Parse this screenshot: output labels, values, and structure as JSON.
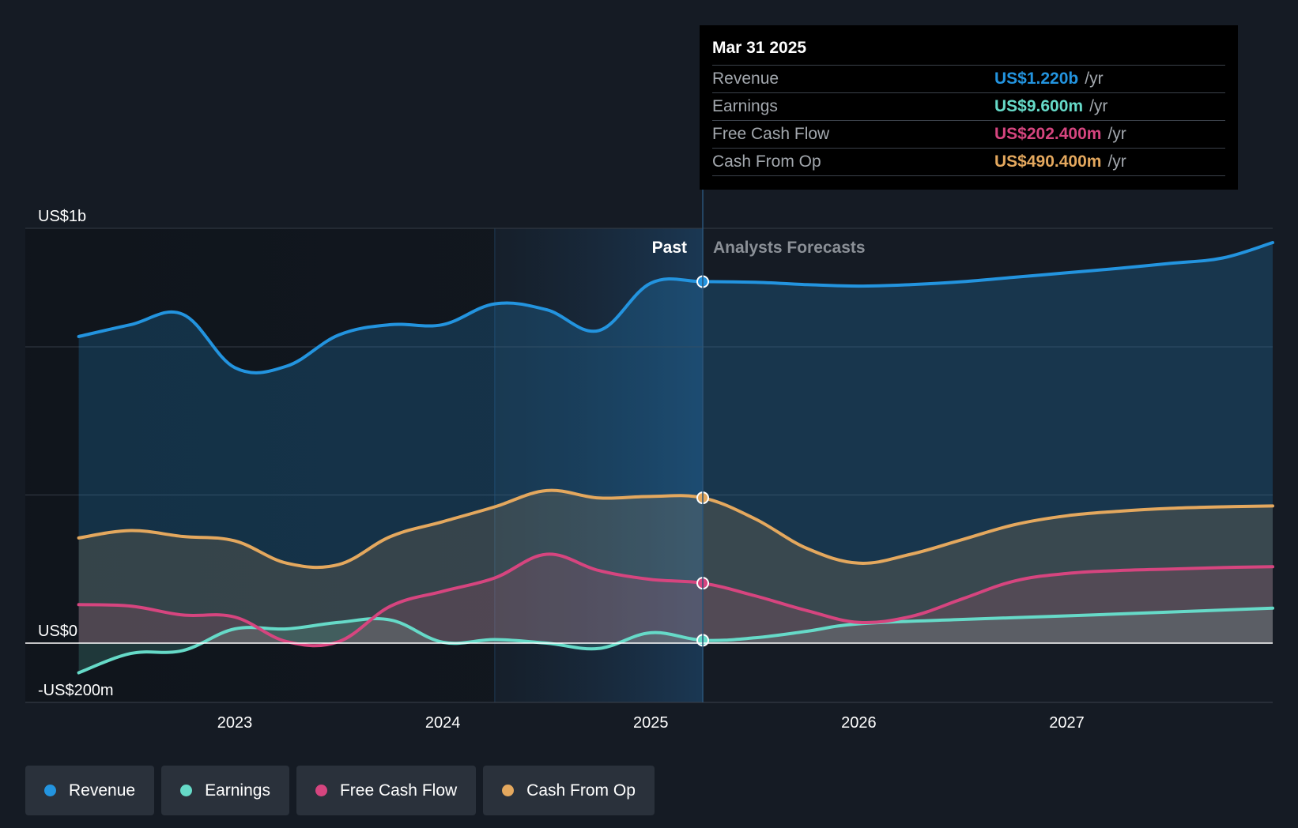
{
  "colors": {
    "background": "#151b24",
    "revenue": "#2394df",
    "earnings": "#66dac8",
    "fcf": "#d6457f",
    "cfo": "#e4a85e",
    "grid": "#353c46"
  },
  "tooltip": {
    "date": "Mar 31 2025",
    "rows": [
      {
        "label": "Revenue",
        "value": "US$1.220b",
        "unit": "/yr"
      },
      {
        "label": "Earnings",
        "value": "US$9.600m",
        "unit": "/yr"
      },
      {
        "label": "Free Cash Flow",
        "value": "US$202.400m",
        "unit": "/yr"
      },
      {
        "label": "Cash From Op",
        "value": "US$490.400m",
        "unit": "/yr"
      }
    ]
  },
  "legend": [
    {
      "label": "Revenue",
      "color": "#2394df"
    },
    {
      "label": "Earnings",
      "color": "#66dac8"
    },
    {
      "label": "Free Cash Flow",
      "color": "#d6457f"
    },
    {
      "label": "Cash From Op",
      "color": "#e4a85e"
    }
  ],
  "chart_data": {
    "type": "line",
    "y_tick_labels": [
      {
        "value": 1400,
        "label": "US$1b"
      },
      {
        "value": 0,
        "label": "US$0"
      },
      {
        "value": -200,
        "label": "-US$200m"
      }
    ],
    "ylim": [
      -200,
      1400
    ],
    "xlim": [
      2022.24,
      2027.99
    ],
    "x_ticks": [
      2023,
      2024,
      2025,
      2026,
      2027
    ],
    "past_label": "Past",
    "forecast_label": "Analysts Forecasts",
    "highlight_start": 2024.25,
    "divider_x": 2025.25,
    "grid_values": [
      1400,
      1000,
      500
    ],
    "series": [
      {
        "name": "Revenue",
        "color": "#2394df",
        "x": [
          2022.25,
          2022.5,
          2022.75,
          2023.0,
          2023.25,
          2023.5,
          2023.75,
          2024.0,
          2024.25,
          2024.5,
          2024.75,
          2025.0,
          2025.25,
          2025.5,
          2025.75,
          2026.0,
          2026.25,
          2026.5,
          2026.75,
          2027.0,
          2027.25,
          2027.5,
          2027.75,
          2027.99
        ],
        "values": [
          1035,
          1075,
          1110,
          930,
          935,
          1040,
          1075,
          1075,
          1145,
          1125,
          1055,
          1215,
          1220,
          1218,
          1210,
          1205,
          1210,
          1220,
          1235,
          1250,
          1265,
          1282,
          1300,
          1352
        ]
      },
      {
        "name": "Earnings",
        "color": "#66dac8",
        "x": [
          2022.25,
          2022.5,
          2022.75,
          2023.0,
          2023.25,
          2023.5,
          2023.75,
          2024.0,
          2024.25,
          2024.5,
          2024.75,
          2025.0,
          2025.25,
          2025.5,
          2025.75,
          2026.0,
          2026.5,
          2027.0,
          2027.5,
          2027.99
        ],
        "values": [
          -100,
          -35,
          -25,
          48,
          48,
          70,
          78,
          3,
          12,
          0,
          -18,
          35,
          9.6,
          18,
          40,
          65,
          80,
          92,
          105,
          118
        ]
      },
      {
        "name": "Free Cash Flow",
        "color": "#d6457f",
        "x": [
          2022.25,
          2022.5,
          2022.75,
          2023.0,
          2023.25,
          2023.5,
          2023.75,
          2024.0,
          2024.25,
          2024.5,
          2024.75,
          2025.0,
          2025.25,
          2025.5,
          2025.75,
          2026.0,
          2026.25,
          2026.5,
          2026.75,
          2027.0,
          2027.25,
          2027.5,
          2027.75,
          2027.99
        ],
        "values": [
          130,
          125,
          95,
          88,
          5,
          5,
          125,
          175,
          220,
          300,
          245,
          215,
          202.4,
          160,
          110,
          70,
          90,
          150,
          210,
          235,
          245,
          250,
          255,
          258
        ]
      },
      {
        "name": "Cash From Op",
        "color": "#e4a85e",
        "x": [
          2022.25,
          2022.5,
          2022.75,
          2023.0,
          2023.25,
          2023.5,
          2023.75,
          2024.0,
          2024.25,
          2024.5,
          2024.75,
          2025.0,
          2025.25,
          2025.5,
          2025.75,
          2026.0,
          2026.25,
          2026.5,
          2026.75,
          2027.0,
          2027.25,
          2027.5,
          2027.75,
          2027.99
        ],
        "values": [
          355,
          380,
          360,
          345,
          270,
          265,
          360,
          410,
          460,
          515,
          490,
          495,
          490.4,
          420,
          320,
          270,
          300,
          350,
          400,
          430,
          445,
          455,
          460,
          463
        ]
      }
    ]
  }
}
